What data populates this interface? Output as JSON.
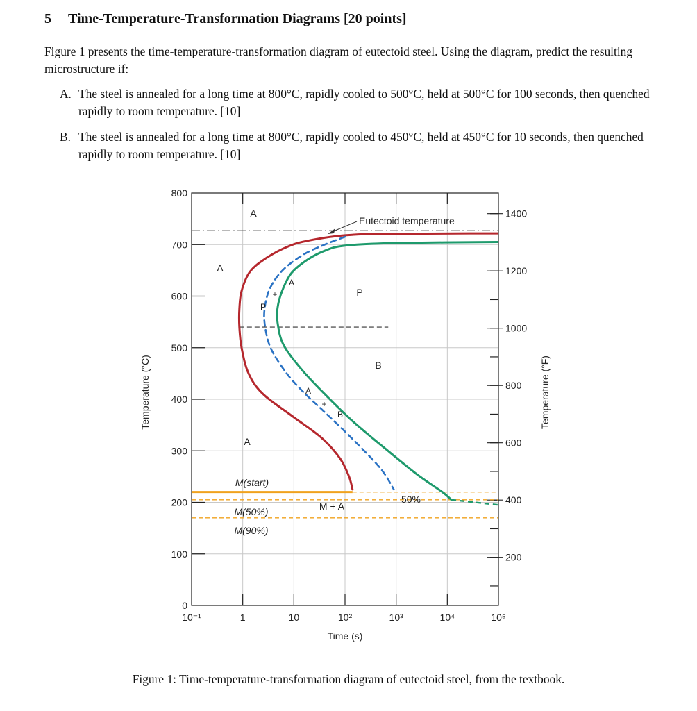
{
  "section": {
    "number": "5",
    "title": "Time-Temperature-Transformation Diagrams [20 points]"
  },
  "intro": "Figure 1 presents the time-temperature-transformation diagram of eutectoid steel. Using the diagram, predict the resulting microstructure if:",
  "parts": [
    {
      "label": "A.",
      "text": "The steel is annealed for a long time at 800°C, rapidly cooled to 500°C, held at 500°C for 100 seconds, then quenched rapidly to room temperature. [10]"
    },
    {
      "label": "B.",
      "text": "The steel is annealed for a long time at 800°C, rapidly cooled to 450°C, held at 450°C for 10 seconds, then quenched rapidly to room temperature. [10]"
    }
  ],
  "caption": "Figure 1: Time-temperature-transformation diagram of eutectoid steel, from the textbook.",
  "chart_data": {
    "type": "line",
    "xlabel": "Time (s)",
    "ylabel": "Temperature (°C)",
    "ylabel_right": "Temperature (°F)",
    "x_scale": "log",
    "xlim": [
      0.1,
      100000
    ],
    "ylim": [
      0,
      800
    ],
    "ylim_right_F": [
      32,
      1472
    ],
    "x_tick_labels": [
      "10⁻¹",
      "1",
      "10",
      "10²",
      "10³",
      "10⁴",
      "10⁵"
    ],
    "x_tick_values": [
      0.1,
      1,
      10,
      100,
      1000,
      10000,
      100000
    ],
    "y_ticks": [
      0,
      100,
      200,
      300,
      400,
      500,
      600,
      700,
      800
    ],
    "y_ticks_right_F": [
      200,
      400,
      600,
      800,
      1000,
      1200,
      1400
    ],
    "grid": true,
    "colors": {
      "start": "#b5272d",
      "finish": "#1e9a6c",
      "fifty": "#2a72c4",
      "martensite": "#f0a21e",
      "eutectoid": "#444444",
      "grid": "#c8c8c8"
    },
    "series": [
      {
        "key": "start",
        "points": [
          [
            1000000,
            722
          ],
          [
            1000,
            721
          ],
          [
            100,
            718
          ],
          [
            20,
            708
          ],
          [
            8,
            697
          ],
          [
            3,
            675
          ],
          [
            1.4,
            648
          ],
          [
            0.95,
            610
          ],
          [
            0.86,
            575
          ],
          [
            0.86,
            540
          ],
          [
            0.95,
            500
          ],
          [
            1.3,
            450
          ],
          [
            2.5,
            410
          ],
          [
            10,
            365
          ],
          [
            35,
            325
          ],
          [
            80,
            285
          ],
          [
            120,
            250
          ],
          [
            140,
            225
          ]
        ]
      },
      {
        "key": "fifty",
        "points": [
          [
            100,
            715
          ],
          [
            40,
            700
          ],
          [
            15,
            680
          ],
          [
            6,
            650
          ],
          [
            3.4,
            615
          ],
          [
            2.7,
            578
          ],
          [
            2.7,
            545
          ],
          [
            3.5,
            500
          ],
          [
            7,
            452
          ],
          [
            15,
            415
          ],
          [
            40,
            375
          ],
          [
            150,
            320
          ],
          [
            500,
            265
          ],
          [
            900,
            225
          ]
        ]
      },
      {
        "key": "finish",
        "points": [
          [
            100000,
            705
          ],
          [
            1000,
            703
          ],
          [
            100,
            698
          ],
          [
            40,
            688
          ],
          [
            18,
            670
          ],
          [
            9,
            645
          ],
          [
            6,
            612
          ],
          [
            4.8,
            578
          ],
          [
            4.8,
            548
          ],
          [
            6.3,
            505
          ],
          [
            15,
            455
          ],
          [
            45,
            405
          ],
          [
            150,
            355
          ],
          [
            600,
            305
          ],
          [
            2500,
            255
          ],
          [
            8000,
            220
          ],
          [
            12000,
            205
          ]
        ]
      },
      {
        "key": "eutectoid",
        "value": 727
      },
      {
        "key": "pearlite_bainite_boundary",
        "value": 540
      },
      {
        "key": "M(start)",
        "value": 220
      },
      {
        "key": "M(50%)",
        "value": 205
      },
      {
        "key": "M(90%)",
        "value": 170
      }
    ],
    "labels": {
      "a1": "A",
      "a2": "A",
      "a3": "A",
      "a4": "A",
      "a5": "A",
      "p1": "P",
      "p2": "P",
      "p3": "+",
      "b1": "B",
      "b2": "B",
      "b3": "+",
      "ma": "M + A",
      "m_start": "M(start)",
      "m50": "M(50%)",
      "m90": "M(90%)",
      "fifty_pct": "50%",
      "eutectoid": "Eutectoid temperature"
    }
  }
}
